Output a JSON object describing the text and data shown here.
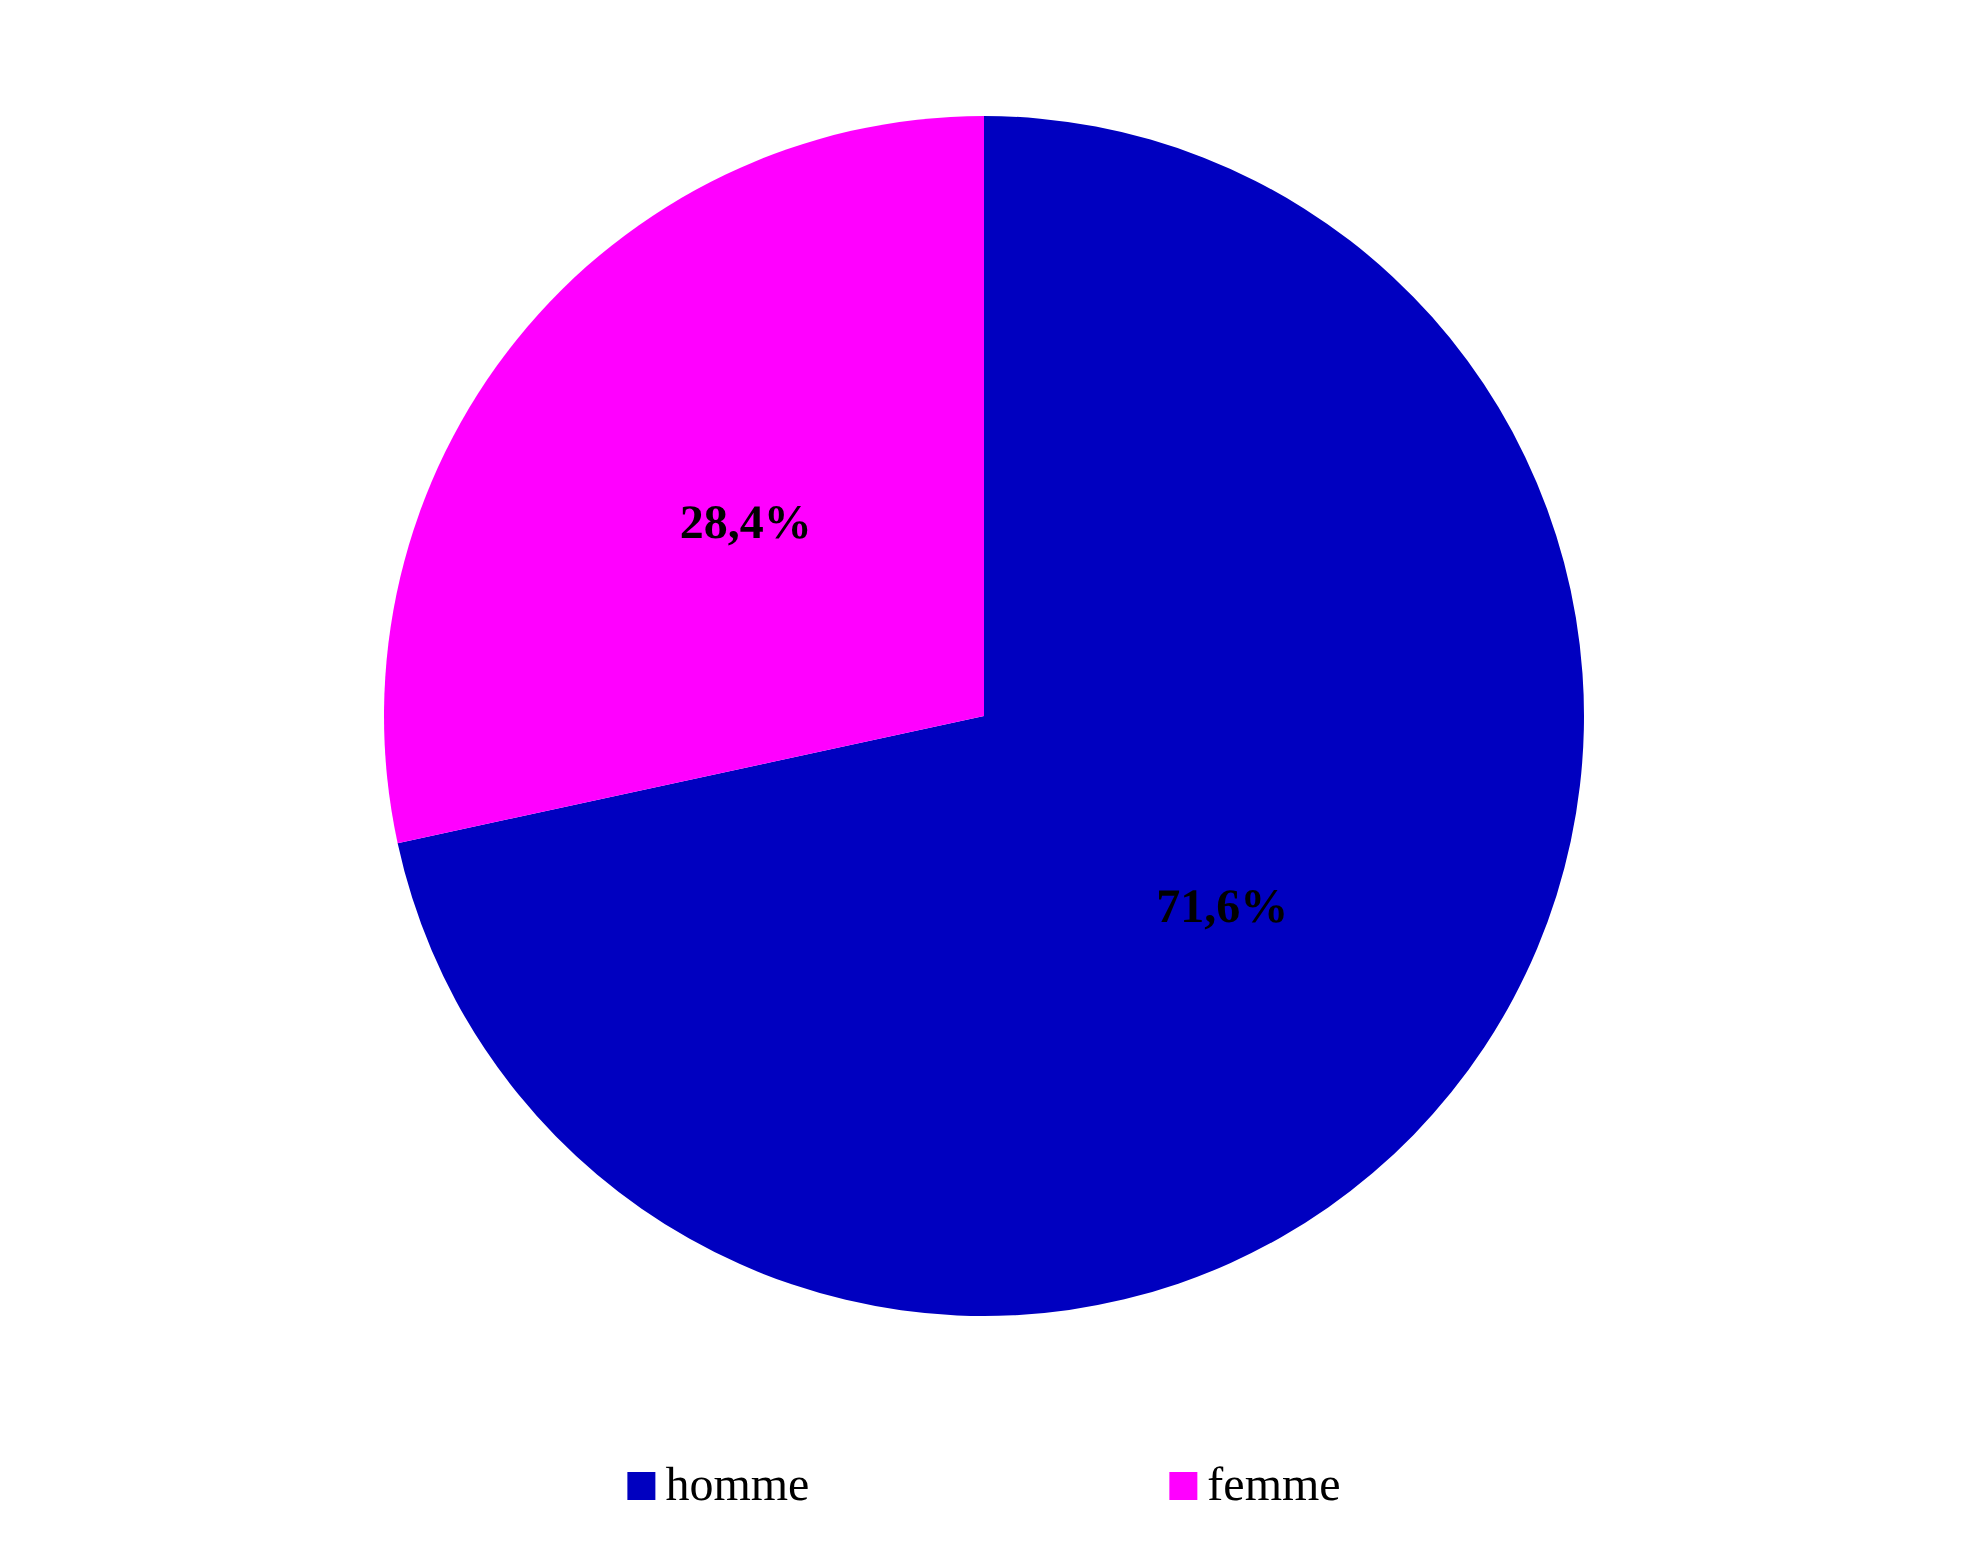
{
  "chart_data": {
    "type": "pie",
    "categories": [
      "homme",
      "femme"
    ],
    "values": [
      71.6,
      28.4
    ],
    "colors": [
      "#0000c0",
      "#ff00ff"
    ],
    "value_labels": [
      "71,6%",
      "28,4%"
    ],
    "legend": "bottom"
  }
}
